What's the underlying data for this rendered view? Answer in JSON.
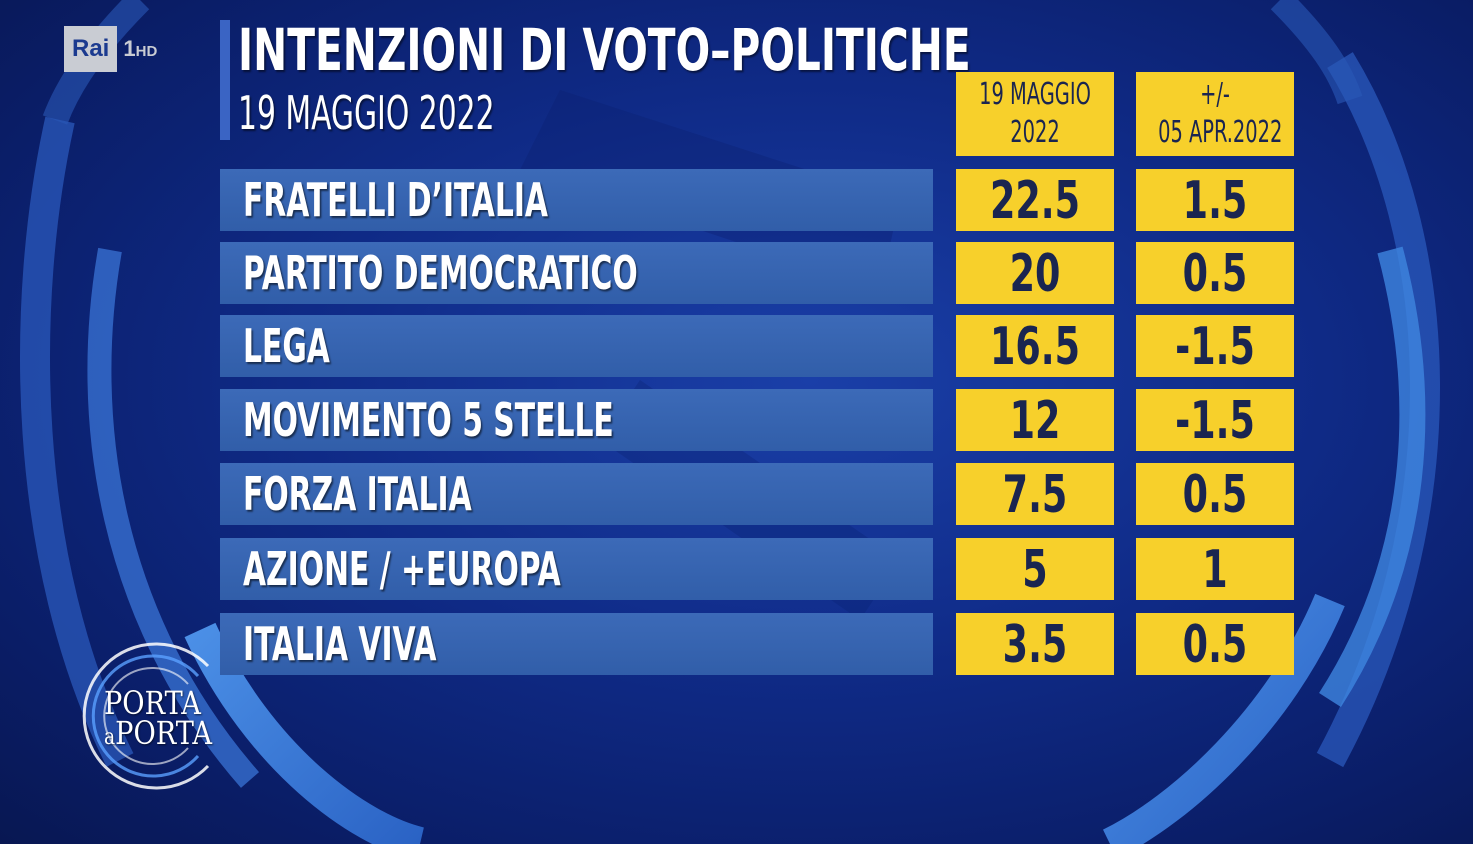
{
  "channel": {
    "brand": "Rai",
    "number": "1",
    "quality": "HD"
  },
  "header": {
    "title": "INTENZIONI DI VOTO–POLITICHE",
    "subtitle": "19 MAGGIO 2022"
  },
  "columns": [
    {
      "line1": "19 MAGGIO",
      "line2": "2022"
    },
    {
      "line1": "+/-",
      "line2": "05 APR.2022"
    }
  ],
  "rows": [
    {
      "party": "FRATELLI D’ITALIA",
      "value": "22.5",
      "change": "1.5"
    },
    {
      "party": "PARTITO DEMOCRATICO",
      "value": "20",
      "change": "0.5"
    },
    {
      "party": "LEGA",
      "value": "16.5",
      "change": "-1.5"
    },
    {
      "party": "MOVIMENTO 5 STELLE",
      "value": "12",
      "change": "-1.5"
    },
    {
      "party": "FORZA ITALIA",
      "value": "7.5",
      "change": "0.5"
    },
    {
      "party": "AZIONE / +EUROPA",
      "value": "5",
      "change": "1"
    },
    {
      "party": "ITALIA VIVA",
      "value": "3.5",
      "change": "0.5"
    }
  ],
  "show_logo": {
    "line1": "PORTA",
    "line2a": "a",
    "line2b": "PORTA"
  },
  "colors": {
    "background": "#0f2a86",
    "row_bar": "#3566b2",
    "highlight": "#f7d02b",
    "ring": "#3f7fd9"
  }
}
